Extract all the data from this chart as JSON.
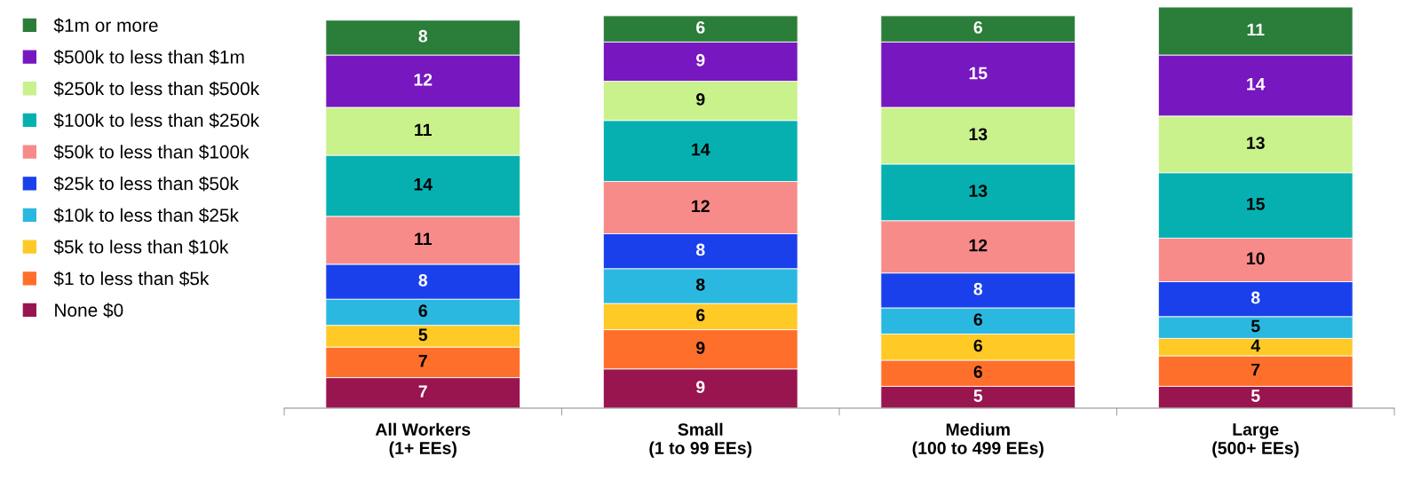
{
  "chart_data": {
    "type": "bar",
    "stacked": true,
    "data_labels": true,
    "legend": "left",
    "grid": false,
    "categories": [
      "All Workers\n(1+ EEs)",
      "Small\n(1 to 99 EEs)",
      "Medium\n(100 to 499 EEs)",
      "Large\n(500+ EEs)"
    ],
    "series": [
      {
        "name": "None $0",
        "color": "#98154f",
        "values": [
          7,
          9,
          5,
          5
        ]
      },
      {
        "name": "$1 to less than $5k",
        "color": "#ff6f2c",
        "values": [
          7,
          9,
          6,
          7
        ]
      },
      {
        "name": "$5k to less than $10k",
        "color": "#ffc926",
        "values": [
          5,
          6,
          6,
          4
        ]
      },
      {
        "name": "$10k to less than $25k",
        "color": "#2bb8e0",
        "values": [
          6,
          8,
          6,
          5
        ]
      },
      {
        "name": "$25k to less than $50k",
        "color": "#1a40eb",
        "values": [
          8,
          8,
          8,
          8
        ]
      },
      {
        "name": "$50k to less than $100k",
        "color": "#f78b8a",
        "values": [
          11,
          12,
          12,
          10
        ]
      },
      {
        "name": "$100k to less than $250k",
        "color": "#07b0b0",
        "values": [
          14,
          14,
          13,
          15
        ]
      },
      {
        "name": "$250k to less than $500k",
        "color": "#c9f18c",
        "values": [
          11,
          9,
          13,
          13
        ]
      },
      {
        "name": "$500k to less than $1m",
        "color": "#7617bf",
        "values": [
          12,
          9,
          15,
          14
        ]
      },
      {
        "name": "$1m or more",
        "color": "#2b7d3a",
        "values": [
          8,
          6,
          6,
          11
        ]
      }
    ]
  }
}
